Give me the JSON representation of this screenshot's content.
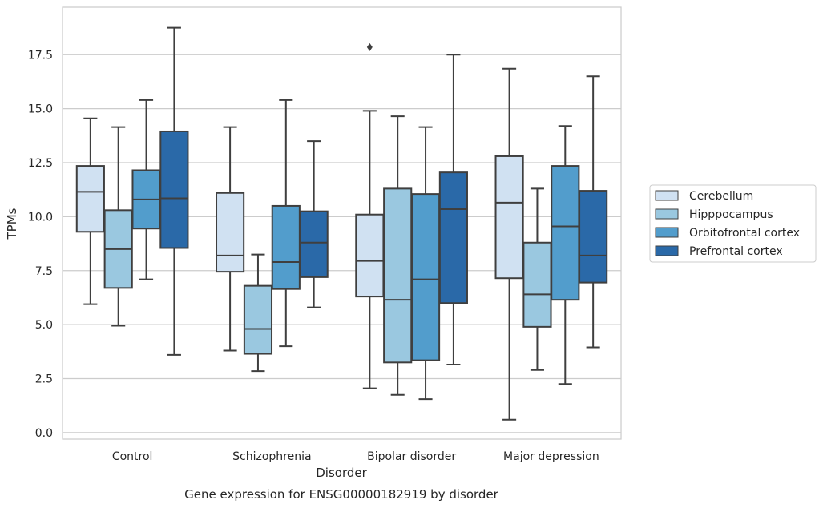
{
  "caption": "Gene expression for ENSG00000182919 by disorder",
  "chart_data": {
    "type": "box",
    "title": "",
    "xlabel": "Disorder",
    "ylabel": "TPMs",
    "ylim": [
      -0.3,
      19.7
    ],
    "yticks": [
      "0.0",
      "2.5",
      "5.0",
      "7.5",
      "10.0",
      "12.5",
      "15.0",
      "17.5"
    ],
    "ytick_values": [
      0,
      2.5,
      5,
      7.5,
      10,
      12.5,
      15,
      17.5
    ],
    "grid": "horizontal",
    "legend_position": "right",
    "categories": [
      "Control",
      "Schizophrenia",
      "Bipolar disorder",
      "Major depression"
    ],
    "series": [
      {
        "name": "Cerebellum",
        "color": "#d0e1f2",
        "boxes": [
          {
            "whisker_low": 5.95,
            "q1": 9.3,
            "median": 11.15,
            "q3": 12.35,
            "whisker_high": 14.55,
            "outliers": []
          },
          {
            "whisker_low": 3.8,
            "q1": 7.45,
            "median": 8.2,
            "q3": 11.1,
            "whisker_high": 14.15,
            "outliers": []
          },
          {
            "whisker_low": 2.05,
            "q1": 6.3,
            "median": 7.95,
            "q3": 10.1,
            "whisker_high": 14.9,
            "outliers": [
              17.85
            ]
          },
          {
            "whisker_low": 0.6,
            "q1": 7.15,
            "median": 10.65,
            "q3": 12.8,
            "whisker_high": 16.85,
            "outliers": []
          }
        ]
      },
      {
        "name": "Hipppocampus",
        "color": "#9ac8e0",
        "boxes": [
          {
            "whisker_low": 4.95,
            "q1": 6.7,
            "median": 8.5,
            "q3": 10.3,
            "whisker_high": 14.15,
            "outliers": []
          },
          {
            "whisker_low": 2.85,
            "q1": 3.65,
            "median": 4.8,
            "q3": 6.8,
            "whisker_high": 8.25,
            "outliers": []
          },
          {
            "whisker_low": 1.75,
            "q1": 3.25,
            "median": 6.15,
            "q3": 11.3,
            "whisker_high": 14.65,
            "outliers": []
          },
          {
            "whisker_low": 2.9,
            "q1": 4.9,
            "median": 6.4,
            "q3": 8.8,
            "whisker_high": 11.3,
            "outliers": []
          }
        ]
      },
      {
        "name": "Orbitofrontal cortex",
        "color": "#529dcc",
        "boxes": [
          {
            "whisker_low": 7.1,
            "q1": 9.45,
            "median": 10.8,
            "q3": 12.15,
            "whisker_high": 15.4,
            "outliers": []
          },
          {
            "whisker_low": 4.0,
            "q1": 6.65,
            "median": 7.9,
            "q3": 10.5,
            "whisker_high": 15.4,
            "outliers": []
          },
          {
            "whisker_low": 1.55,
            "q1": 3.35,
            "median": 7.1,
            "q3": 11.05,
            "whisker_high": 14.15,
            "outliers": []
          },
          {
            "whisker_low": 2.25,
            "q1": 6.15,
            "median": 9.55,
            "q3": 12.35,
            "whisker_high": 14.2,
            "outliers": []
          }
        ]
      },
      {
        "name": "Prefrontal cortex",
        "color": "#2a69a8",
        "boxes": [
          {
            "whisker_low": 3.6,
            "q1": 8.55,
            "median": 10.85,
            "q3": 13.95,
            "whisker_high": 18.75,
            "outliers": []
          },
          {
            "whisker_low": 5.8,
            "q1": 7.2,
            "median": 8.8,
            "q3": 10.25,
            "whisker_high": 13.5,
            "outliers": []
          },
          {
            "whisker_low": 3.15,
            "q1": 6.0,
            "median": 10.35,
            "q3": 12.05,
            "whisker_high": 17.5,
            "outliers": []
          },
          {
            "whisker_low": 3.95,
            "q1": 6.95,
            "median": 8.2,
            "q3": 11.2,
            "whisker_high": 16.5,
            "outliers": []
          }
        ]
      }
    ]
  }
}
